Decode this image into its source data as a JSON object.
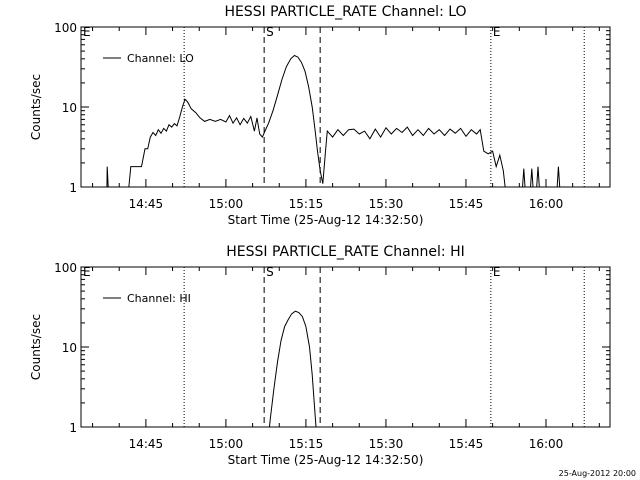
{
  "footer_stamp": "25-Aug-2012 20:00",
  "chart_data": [
    {
      "type": "line",
      "title": "HESSI PARTICLE_RATE Channel: LO",
      "xlabel": "Start Time (25-Aug-12 14:32:50)",
      "ylabel": "Counts/sec",
      "yscale": "log",
      "ylim": [
        1,
        100
      ],
      "xlim": [
        "14:32:50",
        "16:12:00"
      ],
      "yticks": [
        1,
        10,
        100
      ],
      "xticks": [
        "14:45",
        "15:00",
        "15:15",
        "15:30",
        "15:45",
        "16:00"
      ],
      "legend": "top-left",
      "grid": false,
      "series": [
        {
          "name": "Channel: LO",
          "color": "#000000",
          "points": [
            [
              "14:37:40",
              0.8
            ],
            [
              "14:37:45",
              1.8
            ],
            [
              "14:38:00",
              0.8
            ],
            [
              "14:41:40",
              0.8
            ],
            [
              "14:42:10",
              1.8
            ],
            [
              "14:44:10",
              1.8
            ],
            [
              "14:44:50",
              3
            ],
            [
              "14:45:20",
              3
            ],
            [
              "14:45:50",
              4.2
            ],
            [
              "14:46:20",
              4.8
            ],
            [
              "14:46:50",
              4.4
            ],
            [
              "14:47:20",
              5.2
            ],
            [
              "14:47:50",
              4.7
            ],
            [
              "14:48:20",
              5.4
            ],
            [
              "14:48:50",
              5
            ],
            [
              "14:49:20",
              6
            ],
            [
              "14:49:50",
              5.6
            ],
            [
              "14:50:20",
              6.2
            ],
            [
              "14:50:50",
              5.8
            ],
            [
              "14:51:20",
              7.5
            ],
            [
              "14:51:50",
              10
            ],
            [
              "14:52:20",
              12.5
            ],
            [
              "14:52:50",
              11.5
            ],
            [
              "14:53:30",
              9.5
            ],
            [
              "14:54:20",
              8.5
            ],
            [
              "14:55:10",
              7.3
            ],
            [
              "14:56:00",
              6.6
            ],
            [
              "14:57:00",
              7
            ],
            [
              "14:58:00",
              6.6
            ],
            [
              "14:59:00",
              7
            ],
            [
              "15:00:00",
              6.5
            ],
            [
              "15:00:40",
              7.8
            ],
            [
              "15:01:20",
              6.3
            ],
            [
              "15:02:00",
              7.3
            ],
            [
              "15:02:40",
              6
            ],
            [
              "15:03:20",
              7.2
            ],
            [
              "15:04:00",
              6.3
            ],
            [
              "15:04:40",
              7.6
            ],
            [
              "15:05:20",
              5
            ],
            [
              "15:05:50",
              7.3
            ],
            [
              "15:06:20",
              4.6
            ],
            [
              "15:06:50",
              4.2
            ],
            [
              "15:07:20",
              5
            ],
            [
              "15:08:00",
              6.3
            ],
            [
              "15:08:50",
              9
            ],
            [
              "15:09:40",
              14
            ],
            [
              "15:10:30",
              22
            ],
            [
              "15:11:20",
              32
            ],
            [
              "15:12:10",
              40
            ],
            [
              "15:12:50",
              44
            ],
            [
              "15:13:30",
              42
            ],
            [
              "15:14:10",
              36
            ],
            [
              "15:14:50",
              28
            ],
            [
              "15:15:30",
              18
            ],
            [
              "15:16:10",
              10
            ],
            [
              "15:16:40",
              5.5
            ],
            [
              "15:17:10",
              2.8
            ],
            [
              "15:17:40",
              1.6
            ],
            [
              "15:18:10",
              1.1
            ],
            [
              "15:18:40",
              2.8
            ],
            [
              "15:19:00",
              5
            ],
            [
              "15:20:00",
              4.2
            ],
            [
              "15:21:00",
              5.2
            ],
            [
              "15:22:00",
              4.4
            ],
            [
              "15:23:00",
              5.2
            ],
            [
              "15:24:00",
              5.3
            ],
            [
              "15:25:00",
              4.6
            ],
            [
              "15:26:00",
              5
            ],
            [
              "15:27:00",
              4
            ],
            [
              "15:28:00",
              5.3
            ],
            [
              "15:29:00",
              4.2
            ],
            [
              "15:30:00",
              5.5
            ],
            [
              "15:31:00",
              4.6
            ],
            [
              "15:32:00",
              5.4
            ],
            [
              "15:33:00",
              4.8
            ],
            [
              "15:34:00",
              5.6
            ],
            [
              "15:35:00",
              4.4
            ],
            [
              "15:36:00",
              5.2
            ],
            [
              "15:37:00",
              4.4
            ],
            [
              "15:38:00",
              5.4
            ],
            [
              "15:39:00",
              4.6
            ],
            [
              "15:40:00",
              5.2
            ],
            [
              "15:41:00",
              4.4
            ],
            [
              "15:42:00",
              5.3
            ],
            [
              "15:43:00",
              4.7
            ],
            [
              "15:44:00",
              5.4
            ],
            [
              "15:45:00",
              4.3
            ],
            [
              "15:46:00",
              5.2
            ],
            [
              "15:47:00",
              4.6
            ],
            [
              "15:47:40",
              5.2
            ],
            [
              "15:48:20",
              2.8
            ],
            [
              "15:49:10",
              2.6
            ],
            [
              "15:50:00",
              2.8
            ],
            [
              "15:50:40",
              1.8
            ],
            [
              "15:51:20",
              2.5
            ],
            [
              "15:52:00",
              1.6
            ],
            [
              "15:52:30",
              0.8
            ],
            [
              "15:55:30",
              0.8
            ],
            [
              "15:55:50",
              1.7
            ],
            [
              "15:56:10",
              0.8
            ],
            [
              "15:57:00",
              0.8
            ],
            [
              "15:57:20",
              1.7
            ],
            [
              "15:57:40",
              0.8
            ],
            [
              "15:58:10",
              0.8
            ],
            [
              "15:58:30",
              1.8
            ],
            [
              "15:58:50",
              0.8
            ],
            [
              "16:02:00",
              0.8
            ],
            [
              "16:02:20",
              1.8
            ],
            [
              "16:02:40",
              0.8
            ]
          ]
        }
      ],
      "markers": [
        {
          "time": "14:52:10",
          "style": "dotted",
          "label": ""
        },
        {
          "time": "15:07:10",
          "style": "dashed",
          "label": "S"
        },
        {
          "time": "15:17:40",
          "style": "dashed",
          "label": ""
        },
        {
          "time": "15:49:40",
          "style": "dotted",
          "label": "E"
        },
        {
          "time": "16:07:10",
          "style": "dotted",
          "label": ""
        }
      ],
      "corner_label": "E"
    },
    {
      "type": "line",
      "title": "HESSI PARTICLE_RATE Channel: HI",
      "xlabel": "Start Time (25-Aug-12 14:32:50)",
      "ylabel": "Counts/sec",
      "yscale": "log",
      "ylim": [
        1,
        100
      ],
      "xlim": [
        "14:32:50",
        "16:12:00"
      ],
      "yticks": [
        1,
        10,
        100
      ],
      "xticks": [
        "14:45",
        "15:00",
        "15:15",
        "15:30",
        "15:45",
        "16:00"
      ],
      "legend": "top-left",
      "grid": false,
      "series": [
        {
          "name": "Channel: HI",
          "color": "#000000",
          "points": [
            [
              "15:08:00",
              0.8
            ],
            [
              "15:08:20",
              1.3
            ],
            [
              "15:09:00",
              3
            ],
            [
              "15:09:40",
              6.5
            ],
            [
              "15:10:20",
              12
            ],
            [
              "15:11:00",
              18
            ],
            [
              "15:11:40",
              22
            ],
            [
              "15:12:20",
              26
            ],
            [
              "15:13:00",
              28
            ],
            [
              "15:13:40",
              27
            ],
            [
              "15:14:20",
              24
            ],
            [
              "15:15:00",
              18
            ],
            [
              "15:15:40",
              10
            ],
            [
              "15:16:10",
              4.5
            ],
            [
              "15:16:40",
              1.6
            ],
            [
              "15:17:00",
              0.8
            ]
          ]
        }
      ],
      "markers": [
        {
          "time": "14:52:10",
          "style": "dotted",
          "label": ""
        },
        {
          "time": "15:07:10",
          "style": "dashed",
          "label": "S"
        },
        {
          "time": "15:17:40",
          "style": "dashed",
          "label": ""
        },
        {
          "time": "15:49:40",
          "style": "dotted",
          "label": "E"
        },
        {
          "time": "16:07:10",
          "style": "dotted",
          "label": ""
        }
      ],
      "corner_label": "E"
    }
  ]
}
